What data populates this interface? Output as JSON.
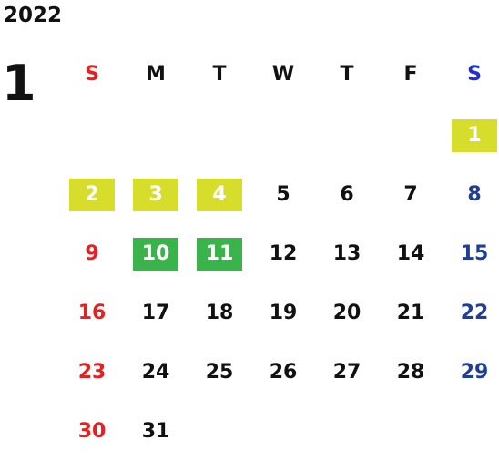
{
  "year": "2022",
  "month": "1",
  "weekdays": [
    "S",
    "M",
    "T",
    "W",
    "T",
    "F",
    "S"
  ],
  "weeks": [
    [
      "",
      "",
      "",
      "",
      "",
      "",
      "1"
    ],
    [
      "2",
      "3",
      "4",
      "5",
      "6",
      "7",
      "8"
    ],
    [
      "9",
      "10",
      "11",
      "12",
      "13",
      "14",
      "15"
    ],
    [
      "16",
      "17",
      "18",
      "19",
      "20",
      "21",
      "22"
    ],
    [
      "23",
      "24",
      "25",
      "26",
      "27",
      "28",
      "29"
    ],
    [
      "30",
      "31",
      "",
      "",
      "",
      "",
      ""
    ]
  ],
  "highlights": {
    "yellow": [
      "1",
      "2",
      "3",
      "4"
    ],
    "green": [
      "10",
      "11"
    ]
  },
  "colors": {
    "sunday": "#e62020",
    "saturday": "#1f3e96",
    "saturday_header": "#1f2fd6",
    "highlight_yellow": "#d6dd2a",
    "highlight_green": "#3ab34a"
  }
}
